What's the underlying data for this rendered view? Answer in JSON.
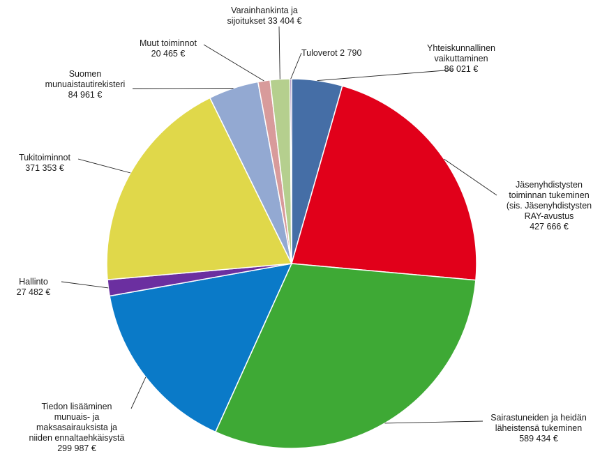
{
  "chart_data": {
    "type": "pie",
    "slices": [
      {
        "lines": [
          "Yhteiskunnallinen",
          "vaikuttaminen",
          "86 021 €"
        ],
        "value": 86021,
        "color": "#456ea6"
      },
      {
        "lines": [
          "Jäsenyhdistysten",
          "toiminnan tukeminen",
          "(sis. Jäsenyhdistysten",
          "RAY-avustus",
          "427 666 €"
        ],
        "value": 427666,
        "color": "#e1001a"
      },
      {
        "lines": [
          "Sairastuneiden ja heidän",
          "läheistensä tukeminen",
          "589 434 €"
        ],
        "value": 589434,
        "color": "#3ea935"
      },
      {
        "lines": [
          "Tiedon lisääminen",
          "munuais- ja",
          "maksasairauksista ja",
          "niiden ennaltaehkäisystä",
          "299 987 €"
        ],
        "value": 299987,
        "color": "#0a7ac8"
      },
      {
        "lines": [
          "Hallinto",
          "27 482 €"
        ],
        "value": 27482,
        "color": "#6b2fa0"
      },
      {
        "lines": [
          "Tukitoiminnot",
          "371 353 €"
        ],
        "value": 371353,
        "color": "#e0d84a"
      },
      {
        "lines": [
          "Suomen",
          "munuaistautirekisteri",
          "84 961 €"
        ],
        "value": 84961,
        "color": "#93a9d2"
      },
      {
        "lines": [
          "Muut toiminnot",
          "20 465 €"
        ],
        "value": 20465,
        "color": "#d89b9b"
      },
      {
        "lines": [
          "Varainhankinta ja",
          "sijoitukset 33 404 €"
        ],
        "value": 33404,
        "color": "#b5cf8e"
      },
      {
        "lines": [
          "Tuloverot 2 790"
        ],
        "value": 2790,
        "color": "#7f5aa0"
      }
    ]
  }
}
